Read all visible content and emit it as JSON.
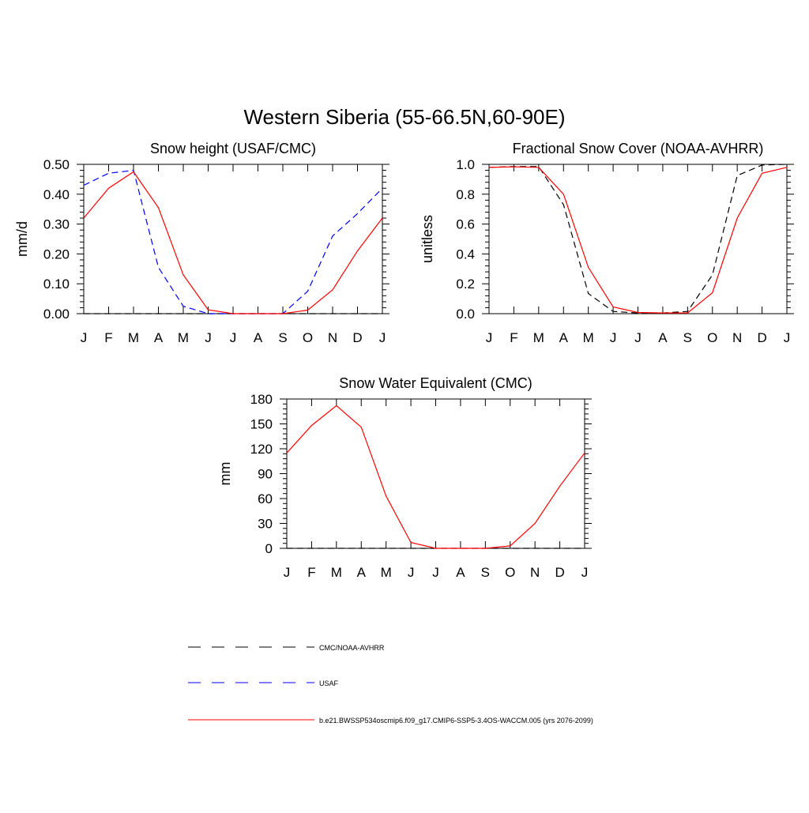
{
  "title": "Western Siberia (55-66.5N,60-90E)",
  "chart_data": [
    {
      "type": "line",
      "title": "Snow height (USAF/CMC)",
      "ylabel": "mm/d",
      "xlabel": "",
      "categories": [
        "J",
        "F",
        "M",
        "A",
        "M",
        "J",
        "J",
        "A",
        "S",
        "O",
        "N",
        "D",
        "J"
      ],
      "ylim": [
        0,
        0.5
      ],
      "yticks": [
        "0.00",
        "0.10",
        "0.20",
        "0.30",
        "0.40",
        "0.50"
      ],
      "series": [
        {
          "name": "CMC/NOAA-AVHRR",
          "color": "#000000",
          "dash": "dashed",
          "values": [
            0,
            0,
            0,
            0,
            0,
            0,
            0,
            0,
            0,
            0,
            0,
            0,
            0
          ]
        },
        {
          "name": "USAF",
          "color": "#0000ff",
          "dash": "dashed",
          "values": [
            0.43,
            0.47,
            0.48,
            0.155,
            0.025,
            0,
            0,
            0,
            0,
            0.075,
            0.26,
            0.335,
            0.42
          ]
        },
        {
          "name": "b.e21.BWSSP534oscmip6.f09_g17.CMIP6-SSP5-3.4OS-WACCM.005 (yrs 2076-2099)",
          "color": "#ff0000",
          "dash": "solid",
          "values": [
            0.32,
            0.42,
            0.475,
            0.355,
            0.13,
            0.013,
            0,
            0,
            0,
            0.012,
            0.08,
            0.21,
            0.32
          ]
        }
      ]
    },
    {
      "type": "line",
      "title": "Fractional Snow Cover (NOAA-AVHRR)",
      "ylabel": "unitless",
      "xlabel": "",
      "categories": [
        "J",
        "F",
        "M",
        "A",
        "M",
        "J",
        "J",
        "A",
        "S",
        "O",
        "N",
        "D",
        "J"
      ],
      "ylim": [
        0,
        1.0
      ],
      "yticks": [
        "0.0",
        "0.2",
        "0.4",
        "0.6",
        "0.8",
        "1.0"
      ],
      "series": [
        {
          "name": "CMC/NOAA-AVHRR",
          "color": "#000000",
          "dash": "dashed",
          "values": [
            0.98,
            0.985,
            0.985,
            0.73,
            0.135,
            0.015,
            0.005,
            0.005,
            0.015,
            0.26,
            0.925,
            0.995,
            1.0
          ]
        },
        {
          "name": "b.e21.BWSSP534oscmip6.f09_g17.CMIP6-SSP5-3.4OS-WACCM.005 (yrs 2076-2099)",
          "color": "#ff0000",
          "dash": "solid",
          "values": [
            0.98,
            0.983,
            0.98,
            0.8,
            0.31,
            0.045,
            0.008,
            0.005,
            0.005,
            0.14,
            0.64,
            0.94,
            0.98
          ]
        }
      ]
    },
    {
      "type": "line",
      "title": "Snow Water Equivalent (CMC)",
      "ylabel": "mm",
      "xlabel": "",
      "categories": [
        "J",
        "F",
        "M",
        "A",
        "M",
        "J",
        "J",
        "A",
        "S",
        "O",
        "N",
        "D",
        "J"
      ],
      "ylim": [
        0,
        180
      ],
      "yticks": [
        "0",
        "30",
        "60",
        "90",
        "120",
        "150",
        "180"
      ],
      "series": [
        {
          "name": "CMC/NOAA-AVHRR",
          "color": "#000000",
          "dash": "dashed",
          "values": [
            0,
            0,
            0,
            0,
            0,
            0,
            0,
            0,
            0,
            0,
            0,
            0,
            0
          ]
        },
        {
          "name": "b.e21.BWSSP534oscmip6.f09_g17.CMIP6-SSP5-3.4OS-WACCM.005 (yrs 2076-2099)",
          "color": "#ff0000",
          "dash": "solid",
          "values": [
            115,
            148,
            172,
            146,
            63,
            7,
            0,
            0,
            0,
            3,
            30,
            75,
            115
          ]
        }
      ]
    }
  ],
  "legend": [
    {
      "label": "CMC/NOAA-AVHRR",
      "color": "#000000",
      "dash": "dashed"
    },
    {
      "label": "USAF",
      "color": "#0000ff",
      "dash": "dashed"
    },
    {
      "label": "b.e21.BWSSP534oscmip6.f09_g17.CMIP6-SSP5-3.4OS-WACCM.005 (yrs 2076-2099)",
      "color": "#ff0000",
      "dash": "solid"
    }
  ]
}
